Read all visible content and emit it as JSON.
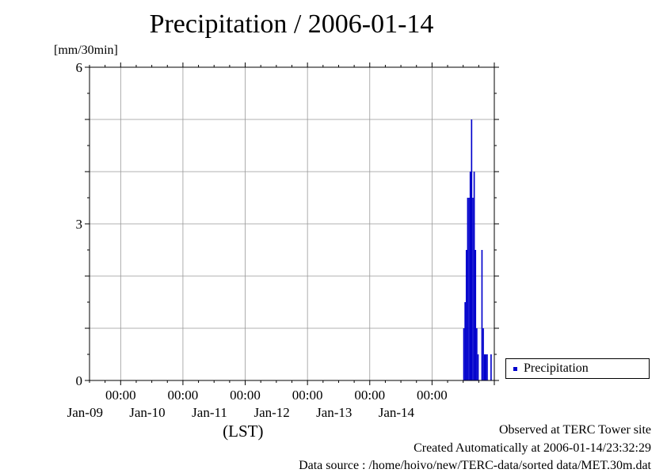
{
  "chart_data": {
    "type": "bar",
    "title": "Precipitation / 2006-01-14",
    "ylabel": "[mm/30min]",
    "xlabel": "(LST)",
    "ylim": [
      0,
      6
    ],
    "y_ticks": [
      "0",
      "3",
      "6"
    ],
    "x_range": [
      "2006-01-08 12:00",
      "2006-01-14 24:00"
    ],
    "x_ticks": [
      {
        "time": "00:00",
        "date": "Jan-09"
      },
      {
        "time": "00:00",
        "date": "Jan-10"
      },
      {
        "time": "00:00",
        "date": "Jan-11"
      },
      {
        "time": "00:00",
        "date": "Jan-12"
      },
      {
        "time": "00:00",
        "date": "Jan-13"
      },
      {
        "time": "00:00",
        "date": "Jan-14"
      }
    ],
    "grid": true,
    "legend_position": "right",
    "series": [
      {
        "name": "Precipitation",
        "color": "#0000cc",
        "x": [
          "2006-01-14 12:30",
          "2006-01-14 13:00",
          "2006-01-14 13:30",
          "2006-01-14 14:00",
          "2006-01-14 14:30",
          "2006-01-14 15:00",
          "2006-01-14 15:30",
          "2006-01-14 16:00",
          "2006-01-14 16:30",
          "2006-01-14 17:00",
          "2006-01-14 17:30",
          "2006-01-14 18:00",
          "2006-01-14 19:30",
          "2006-01-14 20:00",
          "2006-01-14 20:30",
          "2006-01-14 21:00",
          "2006-01-14 21:30",
          "2006-01-14 23:00"
        ],
        "values": [
          1.0,
          1.5,
          2.5,
          3.5,
          3.5,
          4.0,
          5.0,
          3.5,
          4.0,
          2.5,
          1.0,
          0.5,
          2.5,
          1.0,
          0.5,
          0.5,
          0.5,
          0.5
        ]
      }
    ]
  },
  "footer": {
    "observed": "Observed at TERC Tower site",
    "created": "Created Automatically at 2006-01-14/23:32:29",
    "source": "Data source : /home/hoivo/new/TERC-data/sorted  data/MET.30m.dat"
  }
}
